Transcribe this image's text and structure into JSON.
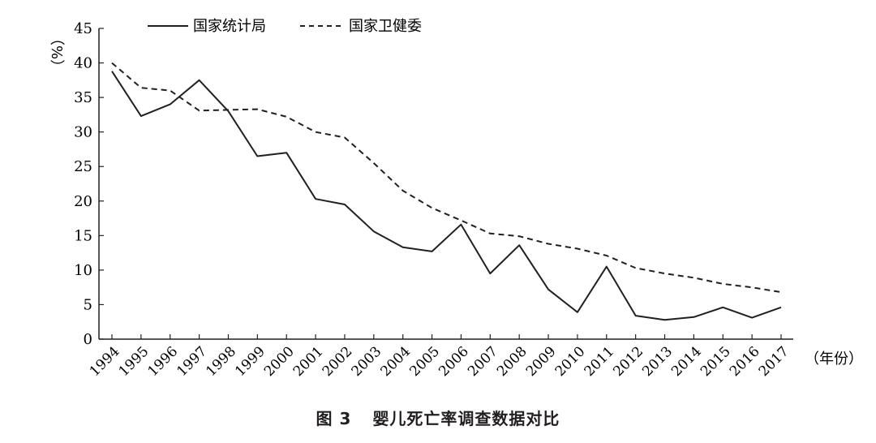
{
  "chart_data": {
    "type": "line",
    "categories": [
      "1994",
      "1995",
      "1996",
      "1997",
      "1998",
      "1999",
      "2000",
      "2001",
      "2002",
      "2003",
      "2004",
      "2005",
      "2006",
      "2007",
      "2008",
      "2009",
      "2010",
      "2011",
      "2012",
      "2013",
      "2014",
      "2015",
      "2016",
      "2017"
    ],
    "series": [
      {
        "name": "国家统计局",
        "style": "solid",
        "values": [
          38.8,
          32.3,
          34.0,
          37.5,
          33.0,
          26.5,
          27.0,
          20.3,
          19.5,
          15.6,
          13.3,
          12.7,
          16.6,
          9.5,
          13.6,
          7.2,
          3.9,
          10.5,
          3.4,
          2.8,
          3.2,
          4.6,
          3.1,
          4.6
        ]
      },
      {
        "name": "国家卫健委",
        "style": "dashed",
        "values": [
          40.0,
          36.4,
          36.0,
          33.1,
          33.2,
          33.3,
          32.2,
          30.0,
          29.2,
          25.5,
          21.5,
          19.0,
          17.2,
          15.3,
          14.9,
          13.8,
          13.1,
          12.1,
          10.3,
          9.5,
          8.9,
          8.0,
          7.5,
          6.8
        ]
      }
    ],
    "yaxis": {
      "ticks": [
        "0",
        "5",
        "10",
        "15",
        "20",
        "25",
        "30",
        "35",
        "40",
        "45"
      ],
      "ylim": [
        0,
        45
      ],
      "unit_label": "（%）"
    },
    "xaxis": {
      "unit_label": "（年份）"
    },
    "grid": false,
    "legend_position": "top"
  },
  "caption": {
    "number": "图 3",
    "title": "婴儿死亡率调查数据对比"
  }
}
